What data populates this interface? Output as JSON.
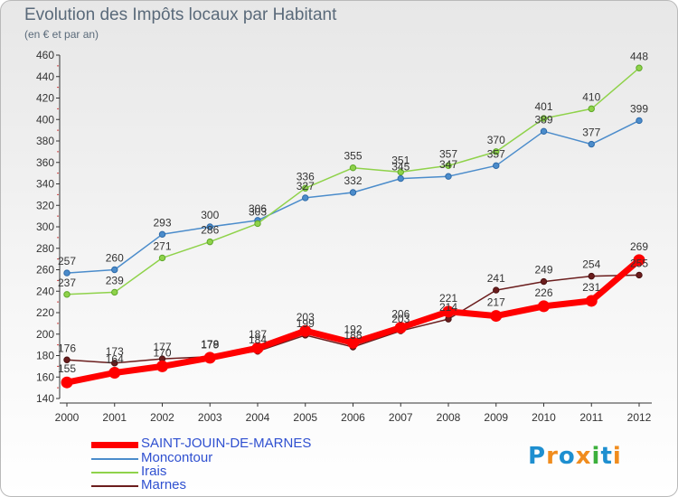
{
  "chart_data": {
    "type": "line",
    "title": "Evolution des Impôts locaux par Habitant",
    "subtitle": "(en € et par an)",
    "xlabel": "",
    "ylabel": "",
    "x": [
      "2000",
      "2001",
      "2002",
      "2003",
      "2004",
      "2005",
      "2006",
      "2007",
      "2008",
      "2009",
      "2010",
      "2011",
      "2012"
    ],
    "ylim": [
      140,
      460
    ],
    "yticks": [
      140,
      160,
      180,
      200,
      220,
      240,
      260,
      280,
      300,
      320,
      340,
      360,
      380,
      400,
      420,
      440,
      460
    ],
    "grid": false,
    "legend_position": "bottom-left",
    "series": [
      {
        "name": "SAINT-JOUIN-DE-MARNES",
        "color": "#ff0000",
        "values": [
          155,
          164,
          170,
          178,
          187,
          203,
          192,
          206,
          221,
          217,
          226,
          231,
          269
        ],
        "labels": [
          "155",
          "164",
          "170",
          "178",
          "187",
          "203",
          "192",
          "206",
          "221",
          "217",
          "226",
          "231",
          "269"
        ]
      },
      {
        "name": "Moncontour",
        "color": "#4b8ccb",
        "values": [
          257,
          260,
          293,
          300,
          306,
          327,
          332,
          345,
          347,
          357,
          389,
          377,
          399
        ],
        "labels": [
          "257",
          "260",
          "293",
          "300",
          "306",
          "327",
          "332",
          "345",
          "347",
          "357",
          "389",
          "377",
          "399"
        ]
      },
      {
        "name": "Irais",
        "color": "#8fd24a",
        "values": [
          237,
          239,
          271,
          286,
          303,
          336,
          355,
          351,
          357,
          370,
          401,
          410,
          448
        ],
        "labels": [
          "237",
          "239",
          "271",
          "286",
          "303",
          "336",
          "355",
          "351",
          "357",
          "370",
          "401",
          "410",
          "448"
        ]
      },
      {
        "name": "Marnes",
        "color": "#6b1d1d",
        "values": [
          176,
          173,
          177,
          179,
          184,
          199,
          188,
          203,
          214,
          241,
          249,
          254,
          255
        ],
        "labels": [
          "176",
          "173",
          "177",
          "179",
          "184",
          "199",
          "188",
          "203",
          "214",
          "241",
          "249",
          "254",
          "255"
        ]
      }
    ]
  },
  "logo": {
    "text": "Proxiti",
    "letters": [
      "P",
      "r",
      "o",
      "x",
      "i",
      "t",
      "i"
    ],
    "colors": [
      "#1e8fd0",
      "#f08c1e",
      "#1e8fd0",
      "#f08c1e",
      "#3cb03c",
      "#1e8fd0",
      "#f08c1e"
    ]
  }
}
